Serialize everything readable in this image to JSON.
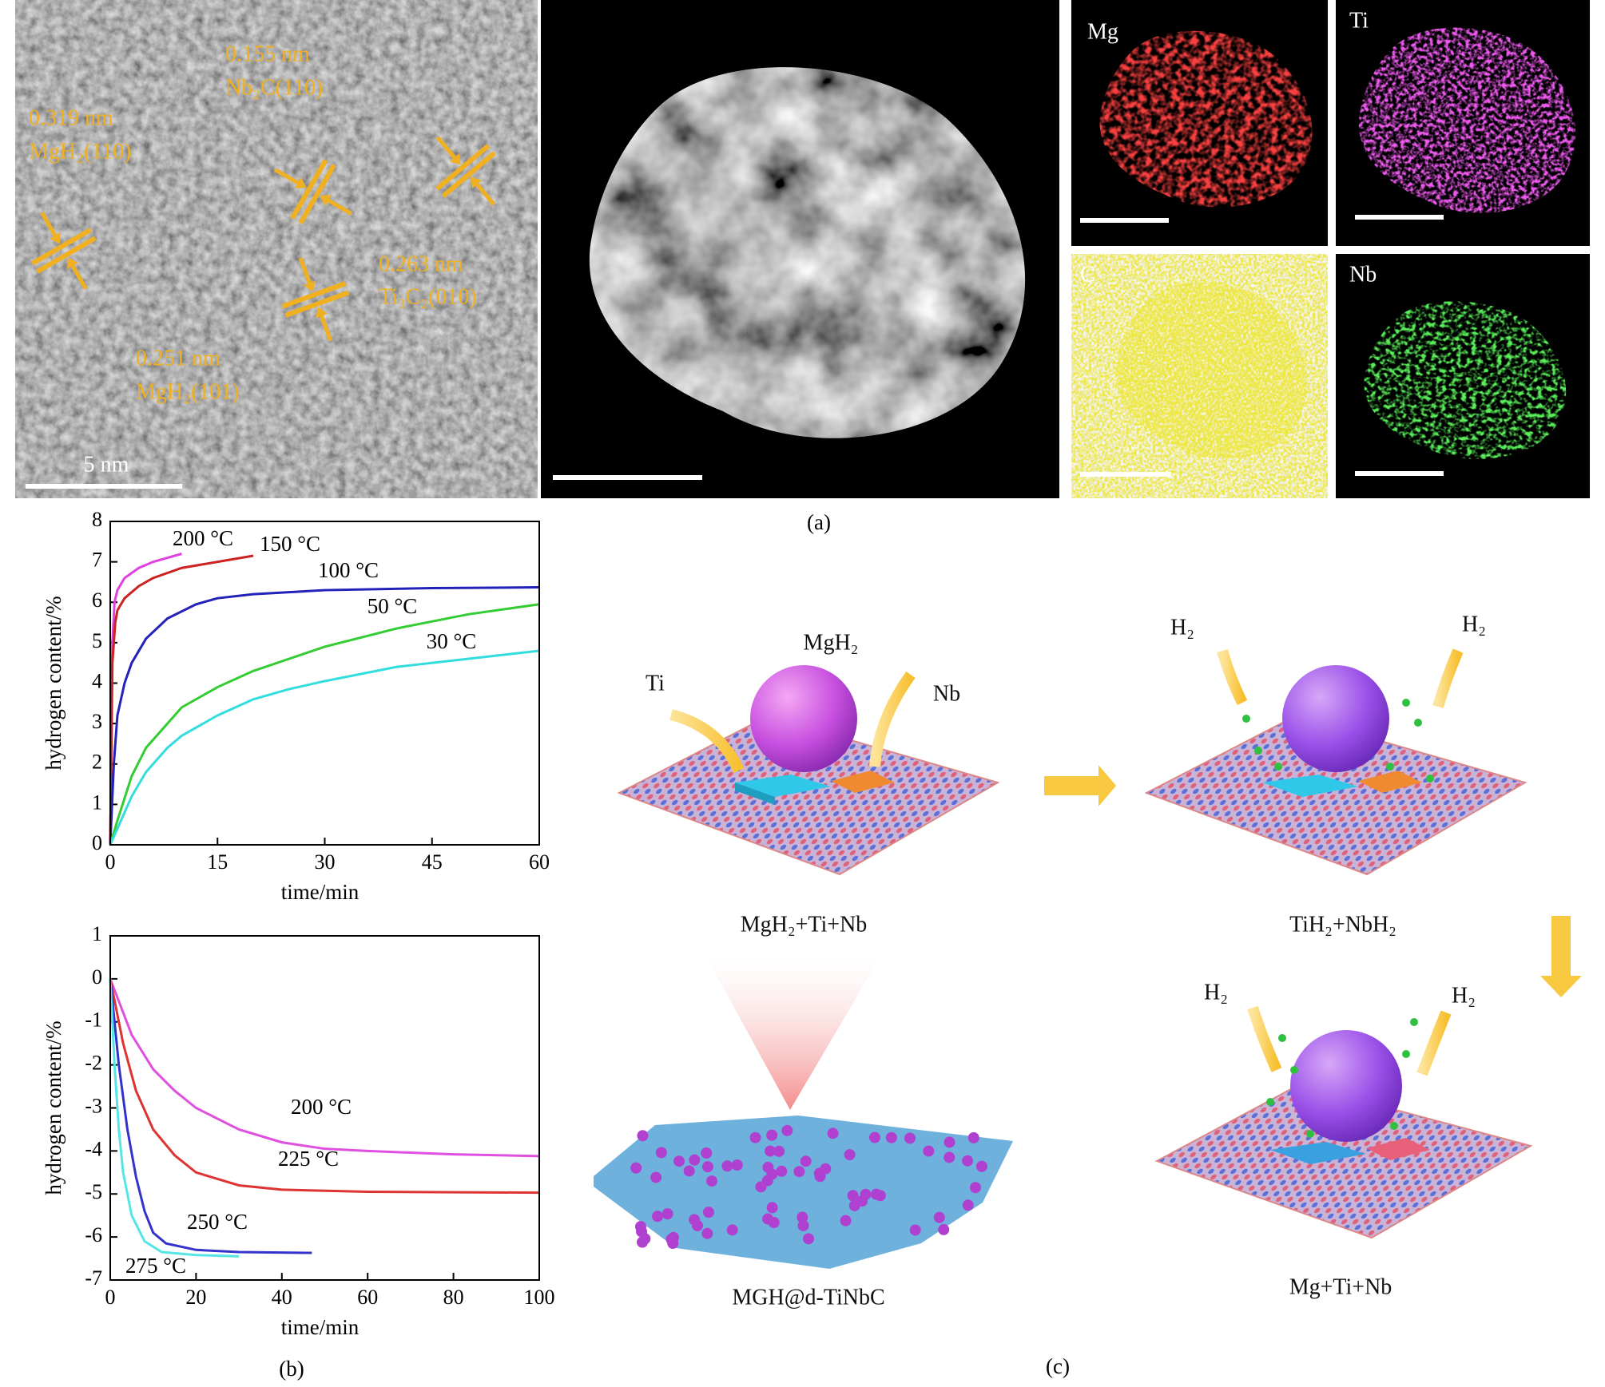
{
  "panel_a": {
    "label": "(a)",
    "hrtem": {
      "scale_bar": "5 nm",
      "annotations": [
        {
          "spacing": "0.155 nm",
          "plane": "Nb₂C(110)"
        },
        {
          "spacing": "0.319 nm",
          "plane": "MgH₂(110)"
        },
        {
          "spacing": "0.263 nm",
          "plane": "Ti₃C₂(010)"
        },
        {
          "spacing": "0.251 nm",
          "plane": "MgH₂(101)"
        }
      ]
    },
    "eds_maps": [
      "Mg",
      "Ti",
      "C",
      "Nb"
    ]
  },
  "chart_data": [
    {
      "type": "line",
      "x_label": "time/min",
      "y_label": "hydrogen content/%",
      "xlim": [
        0,
        60
      ],
      "xticks": [
        0,
        15,
        30,
        45,
        60
      ],
      "ylim": [
        0,
        8
      ],
      "yticks": [
        0,
        1,
        2,
        3,
        4,
        5,
        6,
        7,
        8
      ],
      "series": [
        {
          "name": "200 °C",
          "color": "#e040e0",
          "x": [
            0,
            0.3,
            0.6,
            1,
            2,
            4,
            6,
            8,
            10
          ],
          "values": [
            0,
            5,
            6,
            6.3,
            6.6,
            6.85,
            7.0,
            7.1,
            7.2
          ]
        },
        {
          "name": "150 °C",
          "color": "#cc2222",
          "x": [
            0,
            0.3,
            0.7,
            1,
            2,
            4,
            6,
            10,
            15,
            20
          ],
          "values": [
            0,
            4.5,
            5.5,
            5.8,
            6.1,
            6.4,
            6.6,
            6.85,
            7.0,
            7.15
          ]
        },
        {
          "name": "100 °C",
          "color": "#2222bb",
          "x": [
            0,
            0.5,
            1,
            2,
            3,
            5,
            8,
            12,
            15,
            20,
            30,
            45,
            60
          ],
          "values": [
            0,
            2,
            3.2,
            4.0,
            4.5,
            5.1,
            5.6,
            5.95,
            6.1,
            6.2,
            6.3,
            6.35,
            6.37
          ]
        },
        {
          "name": "50 °C",
          "color": "#33cc33",
          "x": [
            0,
            1,
            3,
            5,
            8,
            10,
            15,
            20,
            25,
            30,
            40,
            50,
            60
          ],
          "values": [
            0,
            0.6,
            1.7,
            2.4,
            3.0,
            3.4,
            3.9,
            4.3,
            4.6,
            4.9,
            5.35,
            5.7,
            5.95
          ]
        },
        {
          "name": "30 °C",
          "color": "#33dddd",
          "x": [
            0,
            1,
            3,
            5,
            8,
            10,
            15,
            20,
            25,
            30,
            40,
            50,
            60
          ],
          "values": [
            0,
            0.4,
            1.2,
            1.8,
            2.4,
            2.7,
            3.2,
            3.6,
            3.85,
            4.05,
            4.4,
            4.6,
            4.8
          ]
        }
      ]
    },
    {
      "type": "line",
      "x_label": "time/min",
      "y_label": "hydrogen content/%",
      "xlim": [
        0,
        100
      ],
      "xticks": [
        0,
        20,
        40,
        60,
        80,
        100
      ],
      "ylim": [
        -7,
        1
      ],
      "yticks": [
        -7,
        -6,
        -5,
        -4,
        -3,
        -2,
        -1,
        0,
        1
      ],
      "series": [
        {
          "name": "200 °C",
          "color": "#e050e0",
          "x": [
            0,
            5,
            10,
            15,
            20,
            30,
            40,
            50,
            60,
            80,
            100
          ],
          "values": [
            0,
            -1.3,
            -2.1,
            -2.6,
            -3.0,
            -3.5,
            -3.8,
            -3.95,
            -4.0,
            -4.08,
            -4.12
          ]
        },
        {
          "name": "225 °C",
          "color": "#dd3333",
          "x": [
            0,
            3,
            6,
            10,
            15,
            20,
            30,
            40,
            60,
            100
          ],
          "values": [
            0,
            -1.5,
            -2.6,
            -3.5,
            -4.1,
            -4.5,
            -4.8,
            -4.9,
            -4.95,
            -4.97
          ]
        },
        {
          "name": "250 °C",
          "color": "#3333cc",
          "x": [
            0,
            2,
            4,
            6,
            8,
            10,
            13,
            20,
            30,
            47
          ],
          "values": [
            0,
            -2,
            -3.5,
            -4.6,
            -5.4,
            -5.9,
            -6.15,
            -6.3,
            -6.35,
            -6.37
          ]
        },
        {
          "name": "275 °C",
          "color": "#55e5e5",
          "x": [
            0,
            1,
            2,
            3,
            5,
            8,
            12,
            20,
            30
          ],
          "values": [
            0,
            -2,
            -3.5,
            -4.5,
            -5.5,
            -6.1,
            -6.35,
            -6.42,
            -6.45
          ]
        }
      ]
    }
  ],
  "panel_b": {
    "label": "(b)"
  },
  "panel_c": {
    "label": "(c)",
    "labels": {
      "mgh2": "MgH₂",
      "ti": "Ti",
      "nb": "Nb",
      "h2": [
        "H₂",
        "H₂",
        "H₂",
        "H₂"
      ],
      "stage1": "MgH₂+Ti+Nb",
      "stage2": "TiH₂+NbH₂",
      "stage3": "Mg+Ti+Nb",
      "catalyst": "MGH@d-TiNbC"
    }
  }
}
